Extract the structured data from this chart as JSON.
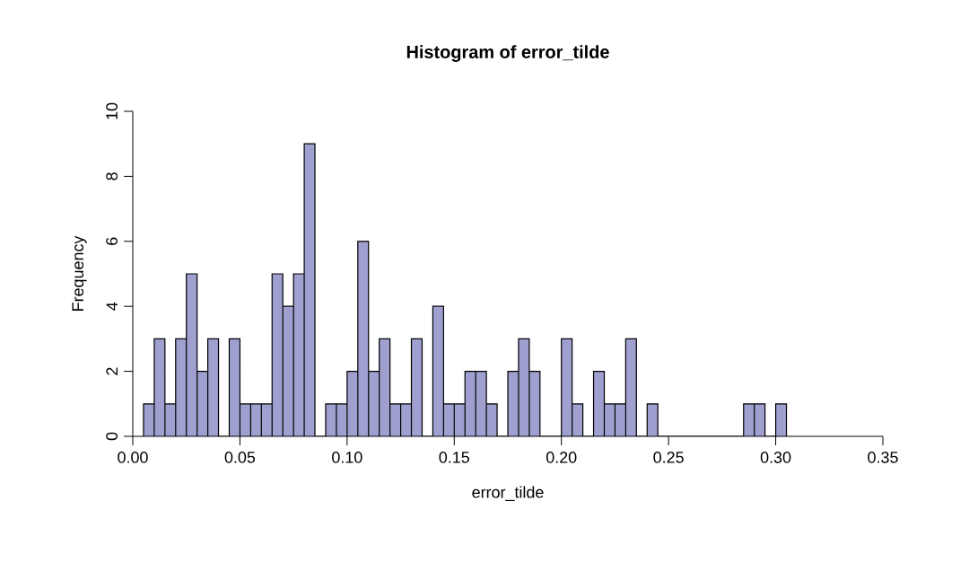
{
  "chart_data": {
    "type": "histogram",
    "title": "Histogram of error_tilde",
    "xlabel": "error_tilde",
    "ylabel": "Frequency",
    "bins": [
      0.005,
      0.01,
      0.015,
      0.02,
      0.025,
      0.03,
      0.035,
      0.04,
      0.045,
      0.05,
      0.055,
      0.06,
      0.065,
      0.07,
      0.075,
      0.08,
      0.085,
      0.09,
      0.095,
      0.1,
      0.105,
      0.11,
      0.115,
      0.12,
      0.125,
      0.13,
      0.135,
      0.14,
      0.145,
      0.15,
      0.155,
      0.16,
      0.165,
      0.17,
      0.175,
      0.18,
      0.185,
      0.19,
      0.195,
      0.2,
      0.205,
      0.21,
      0.215,
      0.22,
      0.225,
      0.23,
      0.235,
      0.24,
      0.245,
      0.25,
      0.255,
      0.26,
      0.265,
      0.27,
      0.275,
      0.28,
      0.285,
      0.29,
      0.295,
      0.3,
      0.305
    ],
    "values": [
      1,
      3,
      1,
      3,
      5,
      2,
      3,
      0,
      3,
      1,
      1,
      1,
      5,
      4,
      5,
      9,
      0,
      1,
      1,
      2,
      6,
      2,
      3,
      1,
      1,
      3,
      0,
      4,
      1,
      1,
      2,
      2,
      1,
      0,
      2,
      3,
      2,
      0,
      0,
      3,
      1,
      0,
      2,
      1,
      1,
      3,
      0,
      1,
      0,
      0,
      0,
      0,
      0,
      0,
      0,
      0,
      1,
      1,
      0,
      1
    ],
    "color": "#9f9fd0",
    "xlim": [
      0,
      0.35
    ],
    "ylim": [
      0,
      10
    ],
    "xticks": [
      {
        "value": 0,
        "label": "0.00"
      },
      {
        "value": 0.05,
        "label": "0.05"
      },
      {
        "value": 0.1,
        "label": "0.10"
      },
      {
        "value": 0.15,
        "label": "0.15"
      },
      {
        "value": 0.2,
        "label": "0.20"
      },
      {
        "value": 0.25,
        "label": "0.25"
      },
      {
        "value": 0.3,
        "label": "0.30"
      },
      {
        "value": 0.35,
        "label": "0.35"
      }
    ],
    "yticks": [
      0,
      2,
      4,
      6,
      8,
      10
    ],
    "grid": false
  }
}
